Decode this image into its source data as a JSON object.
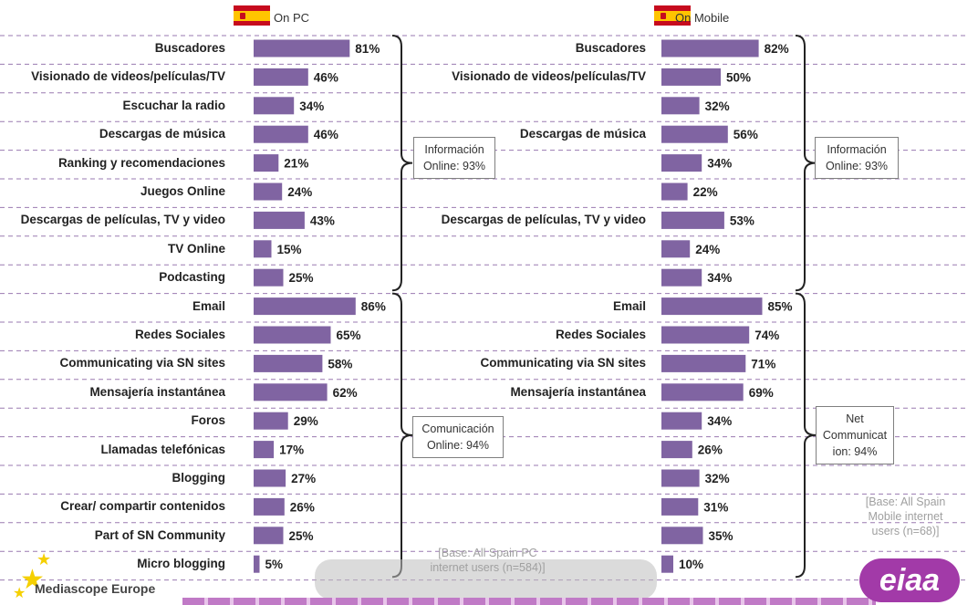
{
  "chart_data": [
    {
      "type": "bar",
      "orientation": "horizontal",
      "panel": "On PC",
      "categories": [
        "Buscadores",
        "Visionado de videos/películas/TV",
        "Escuchar la radio",
        "Descargas de música",
        "Ranking y recomendaciones",
        "Juegos Online",
        "Descargas de películas, TV y video",
        "TV Online",
        "Podcasting",
        "Email",
        "Redes Sociales",
        "Communicating via SN sites",
        "Mensajería instantánea",
        "Foros",
        "Llamadas telefónicas",
        "Blogging",
        "Crear/ compartir contenidos",
        "Part of SN Community",
        "Micro blogging"
      ],
      "values": [
        81,
        46,
        34,
        46,
        21,
        24,
        43,
        15,
        25,
        86,
        65,
        58,
        62,
        29,
        17,
        27,
        26,
        25,
        5
      ],
      "value_labels": [
        "81%",
        "46%",
        "34%",
        "46%",
        "21%",
        "24%",
        "43%",
        "15%",
        "25%",
        "86%",
        "65%",
        "58%",
        "62%",
        "29%",
        "17%",
        "27%",
        "26%",
        "25%",
        "5%"
      ],
      "groups": [
        {
          "label_lines": [
            "Información",
            "Online: 93%"
          ]
        },
        {
          "label_lines": [
            "Comunicación",
            "Online: 94%"
          ]
        }
      ],
      "note_lines": [
        "[Base: All Spain PC",
        "internet users (n=584)]"
      ]
    },
    {
      "type": "bar",
      "orientation": "horizontal",
      "panel": "On Mobile",
      "categories": [
        "Buscadores",
        "Visionado de videos/películas/TV",
        "",
        "Descargas de música",
        "",
        "",
        "Descargas de películas, TV y video",
        "",
        "",
        "Email",
        "Redes Sociales",
        "Communicating via SN sites",
        "Mensajería instantánea",
        "",
        "",
        "",
        "",
        "",
        ""
      ],
      "values": [
        82,
        50,
        32,
        56,
        34,
        22,
        53,
        24,
        34,
        85,
        74,
        71,
        69,
        34,
        26,
        32,
        31,
        35,
        10
      ],
      "value_labels": [
        "82%",
        "50%",
        "32%",
        "56%",
        "34%",
        "22%",
        "53%",
        "24%",
        "34%",
        "85%",
        "74%",
        "71%",
        "69%",
        "34%",
        "26%",
        "32%",
        "31%",
        "35%",
        "10%"
      ],
      "groups": [
        {
          "label_lines": [
            "Información",
            "Online: 93%"
          ]
        },
        {
          "label_lines": [
            "Net",
            "Communicat",
            "ion: 94%"
          ]
        }
      ],
      "note_lines": [
        "[Base: All Spain",
        "Mobile  internet",
        "users (n=68)]"
      ]
    }
  ],
  "footer": {
    "brand_left": "Mediascope Europe",
    "brand_right": "eiaa"
  }
}
